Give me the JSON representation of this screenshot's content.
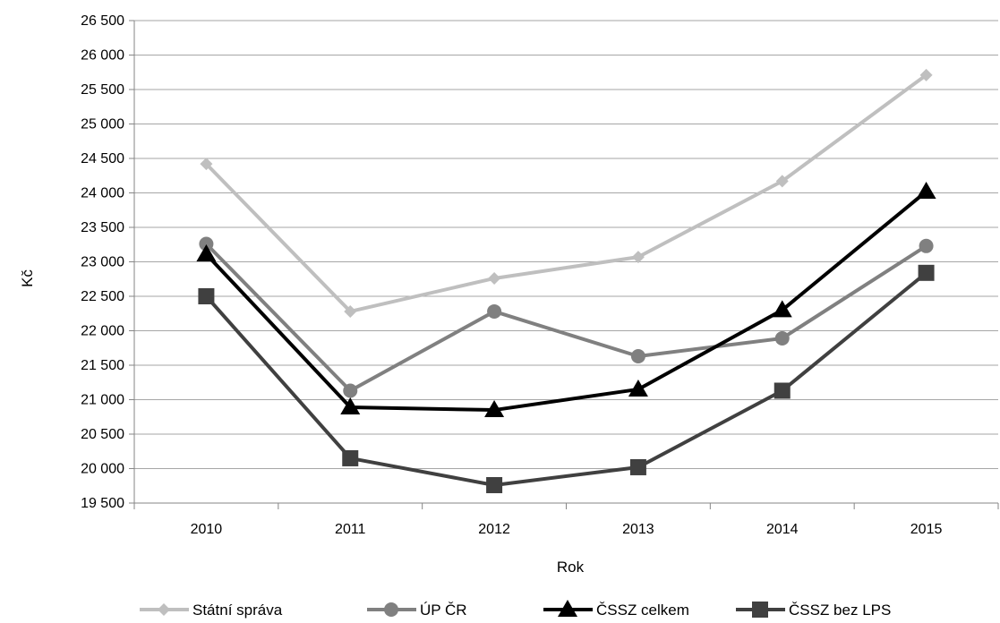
{
  "chart_data": {
    "type": "line",
    "title": "",
    "xlabel": "Rok",
    "ylabel": "Kč",
    "categories": [
      "2010",
      "2011",
      "2012",
      "2013",
      "2014",
      "2015"
    ],
    "ylim": [
      19500,
      26500
    ],
    "ytick_step": 500,
    "y_tick_labels": [
      "19 500",
      "20 000",
      "20 500",
      "21 000",
      "21 500",
      "22 000",
      "22 500",
      "23 000",
      "23 500",
      "24 000",
      "24 500",
      "25 000",
      "25 500",
      "26 000",
      "26 500"
    ],
    "grid": "horizontal",
    "legend_position": "bottom",
    "series": [
      {
        "name": "Státní správa",
        "color": "#bfbfbf",
        "marker": "diamond",
        "values": [
          24420,
          22280,
          22760,
          23070,
          24170,
          25710
        ]
      },
      {
        "name": "ÚP ČR",
        "color": "#808080",
        "marker": "circle",
        "values": [
          23260,
          21130,
          22280,
          21630,
          21890,
          23230
        ]
      },
      {
        "name": "ČSSZ celkem",
        "color": "#000000",
        "marker": "triangle",
        "values": [
          23110,
          20890,
          20850,
          21150,
          22300,
          24020
        ]
      },
      {
        "name": "ČSSZ bez LPS",
        "color": "#404040",
        "marker": "square",
        "values": [
          22500,
          20150,
          19760,
          20020,
          21130,
          22840
        ]
      }
    ]
  }
}
